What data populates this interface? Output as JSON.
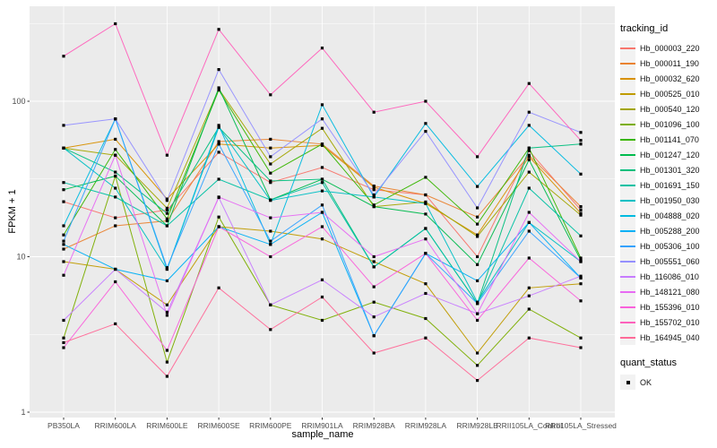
{
  "chart_data": {
    "type": "line",
    "title": "",
    "xlabel": "sample_name",
    "ylabel": "FPKM + 1",
    "y_scale": "log10",
    "ylim": [
      1,
      400
    ],
    "y_ticks": [
      1,
      10,
      100
    ],
    "y_minor_ticks": [
      3.162,
      31.62,
      316.2
    ],
    "grid": true,
    "legend_position": "right",
    "point_shape": "square",
    "point_color": "#000000",
    "categories": [
      "PB350LA",
      "RRIM600LA",
      "RRIM600LE",
      "RRIM600SE",
      "RRIM600PE",
      "RRIM901LA",
      "RRIM928BA",
      "RRIM928LA",
      "RRIM928LE",
      "RRII105LA_Control",
      "RRII105LA_Stressed"
    ],
    "series": [
      {
        "name": "Hb_000003_220",
        "color": "#F8766D",
        "values": [
          22.6,
          17.8,
          20,
          47,
          30,
          37.5,
          27,
          25,
          10,
          48,
          20
        ]
      },
      {
        "name": "Hb_000011_190",
        "color": "#EA8331",
        "values": [
          11.2,
          15.8,
          17,
          55,
          57,
          53,
          28.5,
          25,
          18,
          45,
          21
        ]
      },
      {
        "name": "Hb_000032_620",
        "color": "#D89000",
        "values": [
          50,
          57,
          23.5,
          53,
          50,
          52,
          28,
          22,
          13.8,
          44,
          19
        ]
      },
      {
        "name": "Hb_000525_010",
        "color": "#C09B00",
        "values": [
          9.3,
          8.3,
          4.9,
          15.6,
          14.6,
          13,
          9.3,
          6.7,
          2.4,
          6.3,
          6.7
        ]
      },
      {
        "name": "Hb_000540_120",
        "color": "#A3A500",
        "values": [
          50,
          45,
          20.5,
          120,
          39.5,
          67,
          21,
          22.5,
          13.5,
          35,
          18.5
        ]
      },
      {
        "name": "Hb_001096_100",
        "color": "#7CAE00",
        "values": [
          3.0,
          33,
          2.1,
          18,
          4.9,
          3.9,
          5.1,
          4.0,
          2.0,
          4.6,
          3.0
        ]
      },
      {
        "name": "Hb_001141_070",
        "color": "#39B600",
        "values": [
          13.8,
          49,
          17.5,
          118,
          34.5,
          53,
          21.5,
          32.4,
          16.2,
          50,
          9.8
        ]
      },
      {
        "name": "Hb_001247_120",
        "color": "#00BB4E",
        "values": [
          27,
          33,
          15.8,
          122,
          23.2,
          31.5,
          21,
          18.8,
          8.9,
          42,
          9.5
        ]
      },
      {
        "name": "Hb_001301_320",
        "color": "#00BF7D",
        "values": [
          50,
          35,
          19,
          68,
          30.7,
          31.5,
          8.6,
          15.2,
          5.0,
          50,
          53
        ]
      },
      {
        "name": "Hb_001691_150",
        "color": "#00C1A3",
        "values": [
          30,
          24.2,
          15.8,
          31.5,
          23.2,
          30,
          8.6,
          15.2,
          5.0,
          27.6,
          13.6
        ]
      },
      {
        "name": "Hb_001950_030",
        "color": "#00BFC4",
        "values": [
          50,
          27.6,
          8.3,
          68,
          23,
          26.5,
          24.2,
          22,
          5.1,
          16.6,
          9.3
        ]
      },
      {
        "name": "Hb_004888_020",
        "color": "#00BAE0",
        "values": [
          15.8,
          77,
          8.3,
          70,
          12,
          95,
          24.2,
          72,
          28.3,
          70,
          34
        ]
      },
      {
        "name": "Hb_005288_200",
        "color": "#00B0F6",
        "values": [
          12,
          8.3,
          7.0,
          15.6,
          12,
          19.3,
          3.1,
          10.5,
          7.0,
          16.6,
          7.3
        ]
      },
      {
        "name": "Hb_005306_100",
        "color": "#35A2FF",
        "values": [
          12.6,
          77,
          8.5,
          53,
          12.6,
          21.5,
          3.1,
          10.5,
          5.0,
          14.6,
          7.3
        ]
      },
      {
        "name": "Hb_005551_060",
        "color": "#9590FF",
        "values": [
          70,
          77,
          23,
          160,
          44,
          77,
          25,
          64,
          20.6,
          85,
          63
        ]
      },
      {
        "name": "Hb_116086_010",
        "color": "#C77CFF",
        "values": [
          3.9,
          8.3,
          4.4,
          24,
          4.9,
          7.1,
          4.1,
          5.8,
          4.3,
          5.6,
          7.5
        ]
      },
      {
        "name": "Hb_148121_080",
        "color": "#E76BF3",
        "values": [
          7.6,
          45,
          4.2,
          24.2,
          17.8,
          19.3,
          10,
          13,
          4.3,
          19.3,
          9.3
        ]
      },
      {
        "name": "Hb_155396_010",
        "color": "#FA62DB",
        "values": [
          2.6,
          6.9,
          2.5,
          15.6,
          10,
          15.6,
          6.4,
          10.5,
          3.9,
          9.8,
          5.2
        ]
      },
      {
        "name": "Hb_155702_010",
        "color": "#FF62BC",
        "values": [
          195,
          315,
          45,
          290,
          110,
          220,
          85,
          100,
          44,
          130,
          56
        ]
      },
      {
        "name": "Hb_164945_040",
        "color": "#FF6A98",
        "values": [
          2.8,
          3.7,
          1.7,
          6.3,
          3.4,
          5.5,
          2.4,
          3.0,
          1.6,
          3.0,
          2.6
        ]
      }
    ]
  },
  "legend": {
    "tracking": {
      "title": "tracking_id"
    },
    "quant": {
      "title": "quant_status",
      "entries": [
        {
          "label": "OK",
          "marker": "black-square"
        }
      ]
    }
  },
  "colors": {
    "figure_bg": "#FFFFFF",
    "panel_bg": "#EBEBEB",
    "grid": "#FFFFFF",
    "axis_text": "#4D4D4D",
    "tick_mark": "#333333",
    "legend_key_bg": "#F2F2F2"
  }
}
